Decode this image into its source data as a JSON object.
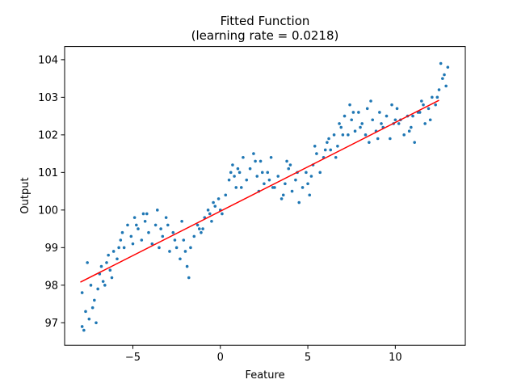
{
  "chart_data": {
    "type": "scatter",
    "title": "Fitted Function",
    "subtitle": "(learning rate = 0.0218)",
    "xlabel": "Feature",
    "ylabel": "Output",
    "xlim": [
      -8.9,
      14.0
    ],
    "ylim": [
      96.4,
      104.35
    ],
    "x_ticks": [
      -5,
      0,
      5,
      10
    ],
    "y_ticks": [
      97,
      98,
      99,
      100,
      101,
      102,
      103,
      104
    ],
    "grid": false,
    "legend": "none",
    "point_color": "#1f77b4",
    "line_color": "#ff0000",
    "fit_line": {
      "x": [
        -8.0,
        12.5
      ],
      "y": [
        98.08,
        102.92
      ]
    },
    "sample_points": {
      "x": [
        -7.9,
        -7.7,
        -7.5,
        -7.4,
        -7.2,
        -7.0,
        -6.9,
        -6.7,
        -6.5,
        -6.3,
        -6.1,
        -5.9,
        -5.7,
        -5.5,
        -5.3,
        -5.1,
        -4.9,
        -4.7,
        -4.5,
        -4.3,
        -4.1,
        -3.9,
        -3.7,
        -3.5,
        -3.3,
        -3.1,
        -2.9,
        -2.7,
        -2.5,
        -2.3,
        -2.1,
        -1.9,
        -1.7,
        -1.5,
        -1.3,
        -1.1,
        -0.9,
        -0.7,
        -0.5,
        -0.3,
        -0.1,
        0.1,
        0.3,
        0.5,
        0.7,
        0.9,
        1.1,
        1.3,
        1.5,
        1.7,
        1.9,
        2.1,
        2.3,
        2.5,
        2.7,
        2.9,
        3.1,
        3.3,
        3.5,
        3.7,
        3.9,
        4.1,
        4.3,
        4.5,
        4.7,
        4.9,
        5.1,
        5.3,
        5.5,
        5.7,
        5.9,
        6.1,
        6.3,
        6.5,
        6.7,
        6.9,
        7.1,
        7.3,
        7.5,
        7.7,
        7.9,
        8.1,
        8.3,
        8.5,
        8.7,
        8.9,
        9.1,
        9.3,
        9.5,
        9.7,
        9.9,
        10.1,
        10.3,
        10.5,
        10.7,
        10.9,
        11.1,
        11.3,
        11.5,
        11.7,
        11.9,
        12.1,
        12.3,
        12.5,
        12.7,
        12.9,
        -7.8,
        -7.3,
        -6.8,
        -6.2,
        -5.6,
        -4.8,
        -4.2,
        -3.4,
        -2.6,
        -1.8,
        -1.2,
        -0.4,
        0.6,
        1.2,
        2.0,
        2.8,
        3.6,
        4.4,
        5.2,
        6.0,
        6.8,
        7.6,
        8.4,
        9.2,
        10.0,
        10.8,
        11.6,
        12.4,
        12.8,
        -7.6,
        -6.6,
        -5.8,
        -4.4,
        -3.0,
        -2.0,
        -1.0,
        0.0,
        1.0,
        2.2,
        3.0,
        4.0,
        5.0,
        6.2,
        7.0,
        8.0,
        9.0,
        10.2,
        11.0,
        12.0,
        13.0,
        -7.9,
        -7.1,
        -6.4,
        -5.0,
        -3.6,
        -2.2,
        -0.6,
        0.8,
        2.4,
        3.8,
        5.4,
        6.6,
        7.4,
        8.6,
        9.8,
        11.4,
        12.6
      ],
      "y": [
        96.9,
        97.3,
        97.1,
        98.0,
        97.6,
        97.9,
        98.3,
        98.1,
        98.6,
        98.4,
        98.9,
        98.7,
        99.2,
        99.0,
        99.6,
        99.3,
        99.8,
        99.5,
        99.2,
        99.7,
        99.4,
        99.1,
        99.6,
        99.0,
        99.3,
        99.8,
        98.9,
        99.4,
        99.0,
        98.7,
        99.2,
        98.5,
        99.0,
        99.3,
        99.6,
        99.4,
        99.8,
        100.0,
        99.7,
        100.1,
        100.3,
        99.9,
        100.4,
        100.8,
        101.2,
        100.6,
        101.0,
        101.4,
        100.8,
        101.1,
        101.5,
        100.9,
        101.3,
        100.7,
        101.0,
        101.4,
        100.6,
        100.9,
        100.3,
        100.7,
        101.1,
        100.5,
        100.8,
        100.2,
        100.6,
        101.0,
        100.4,
        101.2,
        101.5,
        101.0,
        101.4,
        101.8,
        101.6,
        102.0,
        101.7,
        102.2,
        102.5,
        102.0,
        102.4,
        102.1,
        102.6,
        102.3,
        102.0,
        101.8,
        102.4,
        102.1,
        102.6,
        102.2,
        102.5,
        101.9,
        102.3,
        102.7,
        102.4,
        102.0,
        102.5,
        102.2,
        101.8,
        102.6,
        102.9,
        102.3,
        102.7,
        103.0,
        102.8,
        103.2,
        103.5,
        103.3,
        96.8,
        97.4,
        98.5,
        98.2,
        99.4,
        99.6,
        99.9,
        99.5,
        99.2,
        98.2,
        99.5,
        100.2,
        101.0,
        100.6,
        101.3,
        100.8,
        100.4,
        101.0,
        100.9,
        101.6,
        102.3,
        102.6,
        102.7,
        102.3,
        102.4,
        102.1,
        102.8,
        103.0,
        103.6,
        98.6,
        98.0,
        99.0,
        99.9,
        99.6,
        98.9,
        99.5,
        100.0,
        101.1,
        100.5,
        100.6,
        101.2,
        100.7,
        101.9,
        102.0,
        102.2,
        101.9,
        102.3,
        102.5,
        102.4,
        103.8,
        97.8,
        97.0,
        98.8,
        99.1,
        100.0,
        99.7,
        99.9,
        100.9,
        101.0,
        101.3,
        101.7,
        101.4,
        102.8,
        102.9,
        102.8,
        102.6,
        103.9
      ]
    }
  }
}
